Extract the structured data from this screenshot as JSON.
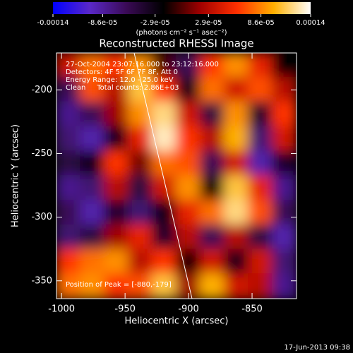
{
  "chart_data": {
    "type": "heatmap",
    "title": "Reconstructed RHESSI Image",
    "x_label": "Heliocentric X (arcsec)",
    "y_label": "Heliocentric Y (arcsec)",
    "colorbar_label": "(photons cm⁻² s⁻¹ asec⁻²)",
    "colormap": [
      "#0000ff",
      "#5a28c8",
      "#3a0a55",
      "#000000",
      "#a00000",
      "#ff3000",
      "#ffb000",
      "#ffffff"
    ],
    "clim": [
      -0.00014,
      0.00014
    ],
    "cticks": [
      -0.00014,
      {
        "value": -8.6e-05,
        "label": "-8.6e-05"
      },
      {
        "value": -2.9e-05,
        "label": "-2.9e-05"
      },
      {
        "value": 2.9e-05,
        "label": "2.9e-05"
      },
      {
        "value": 8.6e-05,
        "label": "8.6e-05"
      },
      0.00014
    ],
    "xlim": [
      -1004,
      -815
    ],
    "xticks": [
      -1000,
      -950,
      -900,
      -850
    ],
    "ylim": [
      -364,
      -171
    ],
    "yticks": [
      -200,
      -250,
      -300,
      -350
    ],
    "annotations": [
      "27-Oct-2004 23:07:16.000 to 23:12:16.000",
      "Detectors: 4F 5F 6F 7F 8F, Att 0",
      "Energy Range: 12.0 - 25.0 keV",
      "Clean     Total counts: 2.86E+03"
    ],
    "peak_label": "Position of Peak = [-880,-179]",
    "timestamp": "17-Jun-2013 09:38",
    "z": [
      [
        4e-05,
        8e-05,
        6e-05,
        9e-05,
        0,
        -6e-05,
        6e-05,
        9e-05,
        5e-05,
        -2e-05
      ],
      [
        -6e-05,
        7e-05,
        3e-05,
        0.00011,
        6e-05,
        -3e-05,
        8e-05,
        4e-05,
        7e-05,
        3e-05
      ],
      [
        -8e-05,
        -6e-05,
        2e-05,
        9e-05,
        0.00012,
        4e-05,
        -5e-05,
        9e-05,
        -4e-05,
        6e-05
      ],
      [
        -7e-05,
        -9e-05,
        -3e-05,
        5e-05,
        0.00013,
        6e-05,
        3e-05,
        0.0001,
        -7e-05,
        4e-05
      ],
      [
        -5e-05,
        -3e-05,
        6e-05,
        1e-05,
        8e-05,
        7e-05,
        -6e-05,
        4e-05,
        -9e-05,
        -4e-05
      ],
      [
        -8e-05,
        -7e-05,
        3e-05,
        -5e-05,
        4e-05,
        9e-05,
        -2e-05,
        0.00011,
        5e-05,
        -8e-05
      ],
      [
        -6e-05,
        -9e-05,
        -4e-05,
        -7e-05,
        -3e-05,
        5e-05,
        8e-05,
        0.00012,
        7e-05,
        -6e-05
      ],
      [
        -7e-05,
        -5e-05,
        2e-05,
        5e-05,
        -4e-05,
        3e-05,
        -6e-05,
        3e-05,
        -5e-05,
        -9e-05
      ],
      [
        6e-05,
        8e-05,
        9e-05,
        3e-05,
        6e-05,
        -2e-05,
        4e-05,
        -3e-05,
        4e-05,
        -7e-05
      ],
      [
        8e-05,
        9e-05,
        6e-05,
        7e-05,
        0.00011,
        2e-05,
        0.0001,
        4e-05,
        3e-05,
        -8e-05
      ]
    ]
  }
}
